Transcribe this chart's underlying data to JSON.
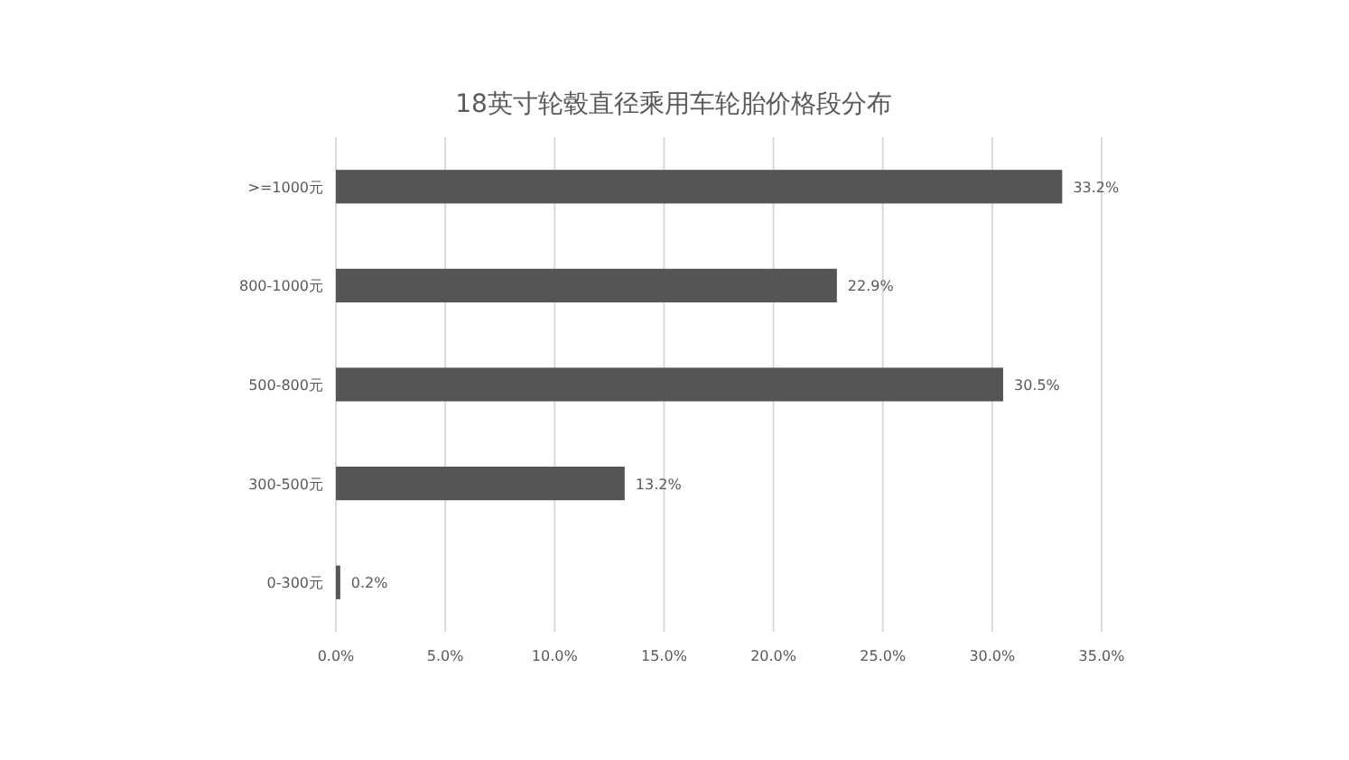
{
  "chart_data": {
    "type": "bar",
    "orientation": "horizontal",
    "title": "18英寸轮毂直径乘用车轮胎价格段分布",
    "categories": [
      ">=1000元",
      "800-1000元",
      "500-800元",
      "300-500元",
      "0-300元"
    ],
    "values": [
      33.2,
      22.9,
      30.5,
      13.2,
      0.2
    ],
    "value_labels": [
      "33.2%",
      "22.9%",
      "30.5%",
      "13.2%",
      "0.2%"
    ],
    "color": "#555555",
    "xlim": [
      0,
      35
    ],
    "xticks": [
      {
        "value": 0,
        "label": "0.0%"
      },
      {
        "value": 5,
        "label": "5.0%"
      },
      {
        "value": 10,
        "label": "10.0%"
      },
      {
        "value": 15,
        "label": "15.0%"
      },
      {
        "value": 20,
        "label": "20.0%"
      },
      {
        "value": 25,
        "label": "25.0%"
      },
      {
        "value": 30,
        "label": "30.0%"
      },
      {
        "value": 35,
        "label": "35.0%"
      }
    ],
    "grid": "x"
  }
}
